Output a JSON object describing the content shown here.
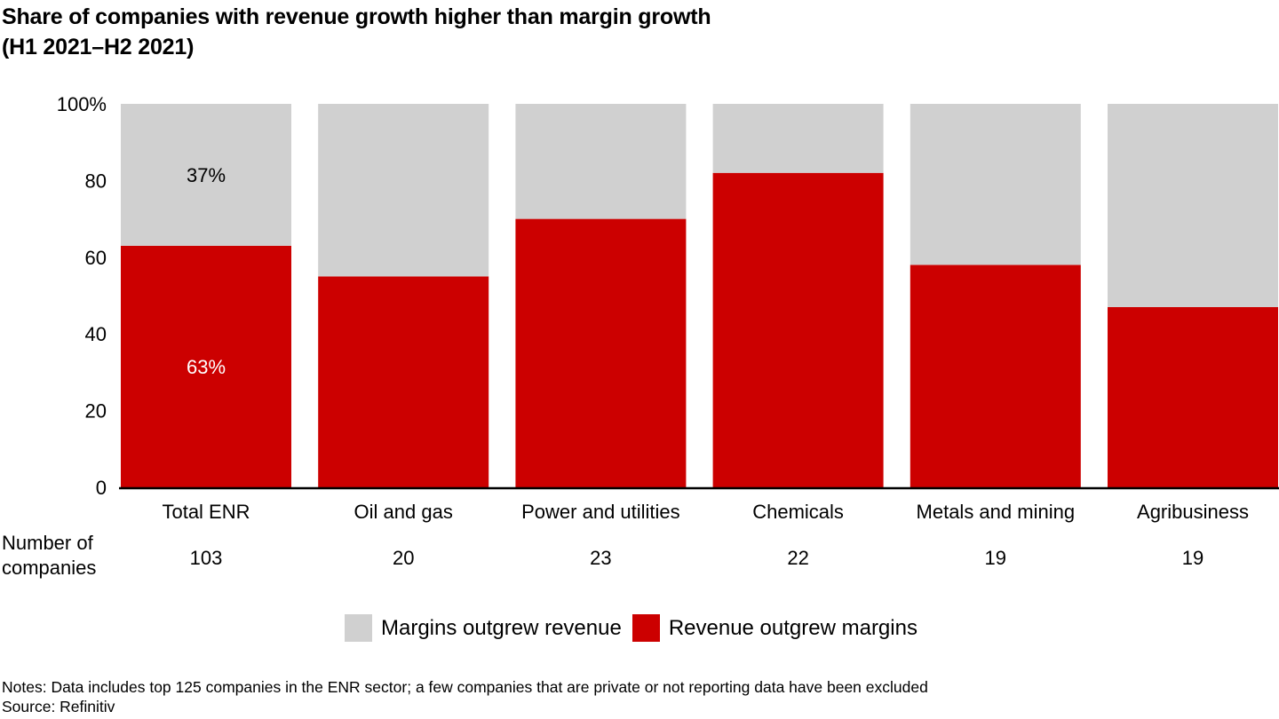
{
  "chart_data": {
    "type": "bar",
    "stacked": true,
    "title": "Share of companies with revenue growth higher than margin growth",
    "subtitle": "(H1 2021–H2 2021)",
    "xlabel": "",
    "ylabel": "",
    "ylim": [
      0,
      100
    ],
    "yticks": [
      "0",
      "20",
      "40",
      "60",
      "80",
      "100%"
    ],
    "ytick_values": [
      0,
      20,
      40,
      60,
      80,
      100
    ],
    "categories": [
      "Total ENR",
      "Oil and gas",
      "Power and utilities",
      "Chemicals",
      "Metals and mining",
      "Agribusiness"
    ],
    "series": [
      {
        "name": "Revenue outgrew margins",
        "color": "#CC0000",
        "values": [
          63,
          55,
          70,
          82,
          58,
          47
        ]
      },
      {
        "name": "Margins outgrew revenue",
        "color": "#D0D0D0",
        "values": [
          37,
          45,
          30,
          18,
          42,
          53
        ]
      }
    ],
    "data_labels": {
      "revenue_total_enr": "63%",
      "margins_total_enr": "37%"
    },
    "row_label": "Number of companies",
    "row_label_lines": [
      "Number of",
      "companies"
    ],
    "company_counts": [
      "103",
      "20",
      "23",
      "22",
      "19",
      "19"
    ],
    "legend": [
      {
        "label": "Margins outgrew revenue",
        "color": "#D0D0D0"
      },
      {
        "label": "Revenue outgrew margins",
        "color": "#CC0000"
      }
    ],
    "legend_position": "bottom",
    "grid": false
  },
  "notes": "Notes: Data includes top 125 companies in the ENR sector; a few companies that are private or not reporting data have been excluded",
  "source": "Source: Refinitiv"
}
